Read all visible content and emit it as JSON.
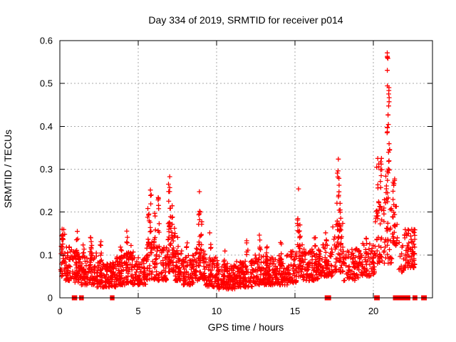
{
  "colors": {
    "marker": "#ff0000",
    "grid": "#a9a9a9",
    "axis": "#000000",
    "background": "#ffffff"
  },
  "chart_data": {
    "type": "scatter",
    "title": "Day 334 of 2019, SRMTID for receiver p014",
    "xlabel": "GPS time / hours",
    "ylabel": "SRMTID / TECUs",
    "xlim": [
      0,
      23.77
    ],
    "ylim": [
      0,
      0.6
    ],
    "xticks": [
      0,
      5,
      10,
      15,
      20
    ],
    "yticks": [
      0,
      0.1,
      0.2,
      0.3,
      0.4,
      0.5,
      0.6
    ],
    "grid": "dotted",
    "legend": "none",
    "marker": {
      "shape": "plus",
      "color": "#ff0000",
      "size": 7
    },
    "seed": 20191334,
    "bands": [
      [
        0.05,
        0.35,
        0.05,
        0.15,
        30
      ],
      [
        0.35,
        0.85,
        0.04,
        0.12,
        45
      ],
      [
        0.85,
        1.25,
        0.035,
        0.115,
        45
      ],
      [
        1.25,
        1.85,
        0.03,
        0.1,
        55
      ],
      [
        1.85,
        2.35,
        0.03,
        0.105,
        50
      ],
      [
        2.35,
        2.95,
        0.025,
        0.09,
        60
      ],
      [
        2.95,
        3.6,
        0.025,
        0.085,
        65
      ],
      [
        3.6,
        4.2,
        0.03,
        0.1,
        60
      ],
      [
        4.2,
        4.75,
        0.03,
        0.11,
        50
      ],
      [
        4.75,
        5.5,
        0.03,
        0.095,
        65
      ],
      [
        5.5,
        6.45,
        0.04,
        0.13,
        75
      ],
      [
        6.45,
        6.85,
        0.04,
        0.12,
        38
      ],
      [
        6.85,
        7.35,
        0.06,
        0.18,
        55
      ],
      [
        7.35,
        7.85,
        0.04,
        0.12,
        45
      ],
      [
        7.85,
        8.6,
        0.03,
        0.1,
        70
      ],
      [
        8.6,
        9.3,
        0.04,
        0.13,
        60
      ],
      [
        9.3,
        10.1,
        0.025,
        0.095,
        70
      ],
      [
        10.1,
        11.2,
        0.02,
        0.08,
        110
      ],
      [
        11.2,
        12.4,
        0.025,
        0.09,
        110
      ],
      [
        12.4,
        13.4,
        0.03,
        0.1,
        100
      ],
      [
        13.4,
        14.5,
        0.03,
        0.1,
        100
      ],
      [
        14.5,
        15.1,
        0.035,
        0.11,
        55
      ],
      [
        15.1,
        15.5,
        0.05,
        0.13,
        32
      ],
      [
        15.5,
        16.5,
        0.04,
        0.115,
        90
      ],
      [
        16.5,
        17.4,
        0.05,
        0.125,
        85
      ],
      [
        17.4,
        18.1,
        0.06,
        0.18,
        55
      ],
      [
        18.1,
        19.2,
        0.04,
        0.115,
        80
      ],
      [
        19.2,
        20.1,
        0.05,
        0.13,
        65
      ],
      [
        20.1,
        20.7,
        0.08,
        0.22,
        42
      ],
      [
        20.7,
        21.2,
        0.08,
        0.25,
        36
      ],
      [
        21.2,
        21.6,
        0.12,
        0.22,
        26
      ],
      [
        21.6,
        21.95,
        0.06,
        0.13,
        16
      ],
      [
        21.95,
        22.65,
        0.07,
        0.16,
        60
      ]
    ],
    "spikes": [
      [
        0.2,
        0.2,
        0.11,
        0.165,
        8
      ],
      [
        1.1,
        0.12,
        0.1,
        0.16,
        6
      ],
      [
        1.5,
        0.1,
        0.09,
        0.125,
        5
      ],
      [
        2.0,
        0.15,
        0.09,
        0.148,
        8
      ],
      [
        2.6,
        0.1,
        0.08,
        0.135,
        5
      ],
      [
        3.9,
        0.1,
        0.08,
        0.12,
        4
      ],
      [
        4.3,
        0.1,
        0.09,
        0.165,
        7
      ],
      [
        4.55,
        0.08,
        0.09,
        0.135,
        4
      ],
      [
        5.65,
        0.1,
        0.12,
        0.21,
        7
      ],
      [
        5.8,
        0.08,
        0.14,
        0.262,
        8
      ],
      [
        6.05,
        0.1,
        0.12,
        0.2,
        6
      ],
      [
        6.3,
        0.1,
        0.13,
        0.24,
        8
      ],
      [
        7.0,
        0.15,
        0.14,
        0.285,
        14
      ],
      [
        7.15,
        0.1,
        0.1,
        0.22,
        8
      ],
      [
        7.5,
        0.1,
        0.1,
        0.155,
        5
      ],
      [
        8.1,
        0.1,
        0.08,
        0.13,
        4
      ],
      [
        8.9,
        0.1,
        0.12,
        0.255,
        9
      ],
      [
        9.05,
        0.1,
        0.1,
        0.2,
        6
      ],
      [
        9.6,
        0.1,
        0.08,
        0.155,
        5
      ],
      [
        10.5,
        0.1,
        0.07,
        0.12,
        5
      ],
      [
        11.95,
        0.1,
        0.08,
        0.135,
        5
      ],
      [
        12.75,
        0.12,
        0.09,
        0.15,
        6
      ],
      [
        13.2,
        0.1,
        0.08,
        0.125,
        4
      ],
      [
        14.1,
        0.12,
        0.08,
        0.135,
        6
      ],
      [
        15.2,
        0.1,
        0.12,
        0.258,
        10
      ],
      [
        15.3,
        0.1,
        0.1,
        0.17,
        6
      ],
      [
        16.25,
        0.12,
        0.09,
        0.155,
        6
      ],
      [
        17.0,
        0.12,
        0.1,
        0.16,
        5
      ],
      [
        17.75,
        0.15,
        0.14,
        0.34,
        16
      ],
      [
        17.9,
        0.1,
        0.12,
        0.25,
        8
      ],
      [
        19.55,
        0.12,
        0.1,
        0.155,
        6
      ],
      [
        20.3,
        0.18,
        0.18,
        0.36,
        12
      ],
      [
        20.5,
        0.12,
        0.2,
        0.33,
        8
      ],
      [
        20.9,
        0.1,
        0.51,
        0.575,
        5
      ],
      [
        20.95,
        0.12,
        0.44,
        0.5,
        7
      ],
      [
        20.9,
        0.12,
        0.38,
        0.43,
        7
      ],
      [
        21.0,
        0.14,
        0.29,
        0.37,
        9
      ],
      [
        20.85,
        0.12,
        0.22,
        0.3,
        7
      ],
      [
        21.3,
        0.12,
        0.18,
        0.28,
        8
      ],
      [
        22.2,
        0.12,
        0.1,
        0.18,
        6
      ],
      [
        22.5,
        0.15,
        0.08,
        0.155,
        10
      ]
    ],
    "zero_runs": [
      [
        0.82,
        1.05
      ],
      [
        1.28,
        1.32
      ],
      [
        1.43,
        1.47
      ],
      [
        3.25,
        3.29
      ],
      [
        3.39,
        3.43
      ],
      [
        16.95,
        17.25
      ],
      [
        20.1,
        20.35
      ],
      [
        21.3,
        21.65
      ],
      [
        21.72,
        21.95
      ],
      [
        22.0,
        22.3
      ],
      [
        22.55,
        22.75
      ],
      [
        23.1,
        23.35
      ]
    ]
  }
}
